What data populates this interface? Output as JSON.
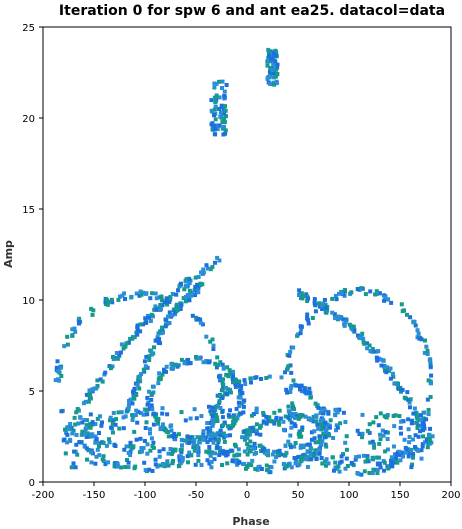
{
  "chart_data": {
    "type": "scatter",
    "title": "Iteration 0 for spw 6 and ant ea25.  datacol=data",
    "xlabel": "Phase",
    "ylabel": "Amp",
    "xlim": [
      -200,
      200
    ],
    "ylim": [
      0,
      25
    ],
    "xticks": [
      -200,
      -150,
      -100,
      -50,
      0,
      50,
      100,
      150,
      200
    ],
    "yticks": [
      0,
      5,
      10,
      15,
      20,
      25
    ],
    "grid": false,
    "legend": "none",
    "colors": [
      "#1c6fe0",
      "#14998a",
      "#2a8fd6"
    ],
    "clusters": [
      {
        "x": [
          20,
          30
        ],
        "y": [
          21.8,
          23.8
        ]
      },
      {
        "x": [
          -35,
          -20
        ],
        "y": [
          19.0,
          22.0
        ]
      }
    ],
    "loops": [
      {
        "cx": -105,
        "cy": 5.5,
        "rx": 80,
        "ry": 4.8
      },
      {
        "cx": -50,
        "cy": 4.5,
        "rx": 45,
        "ry": 2.2
      },
      {
        "cx": 110,
        "cy": 5.5,
        "rx": 70,
        "ry": 5.0
      },
      {
        "cx": 20,
        "cy": 3.2,
        "rx": 55,
        "ry": 2.5
      },
      {
        "cx": -40,
        "cy": 2.8,
        "rx": 120,
        "ry": 1.2
      },
      {
        "cx": 90,
        "cy": 2.5,
        "rx": 90,
        "ry": 1.3
      }
    ],
    "arcs": [
      {
        "x0": -180,
        "y0": 2.5,
        "x1": -25,
        "y1": 12.3
      },
      {
        "x0": -120,
        "y0": 3.5,
        "x1": -45,
        "y1": 10.8
      },
      {
        "x0": 50,
        "y0": 10.4,
        "x1": 175,
        "y1": 3.0
      }
    ]
  }
}
